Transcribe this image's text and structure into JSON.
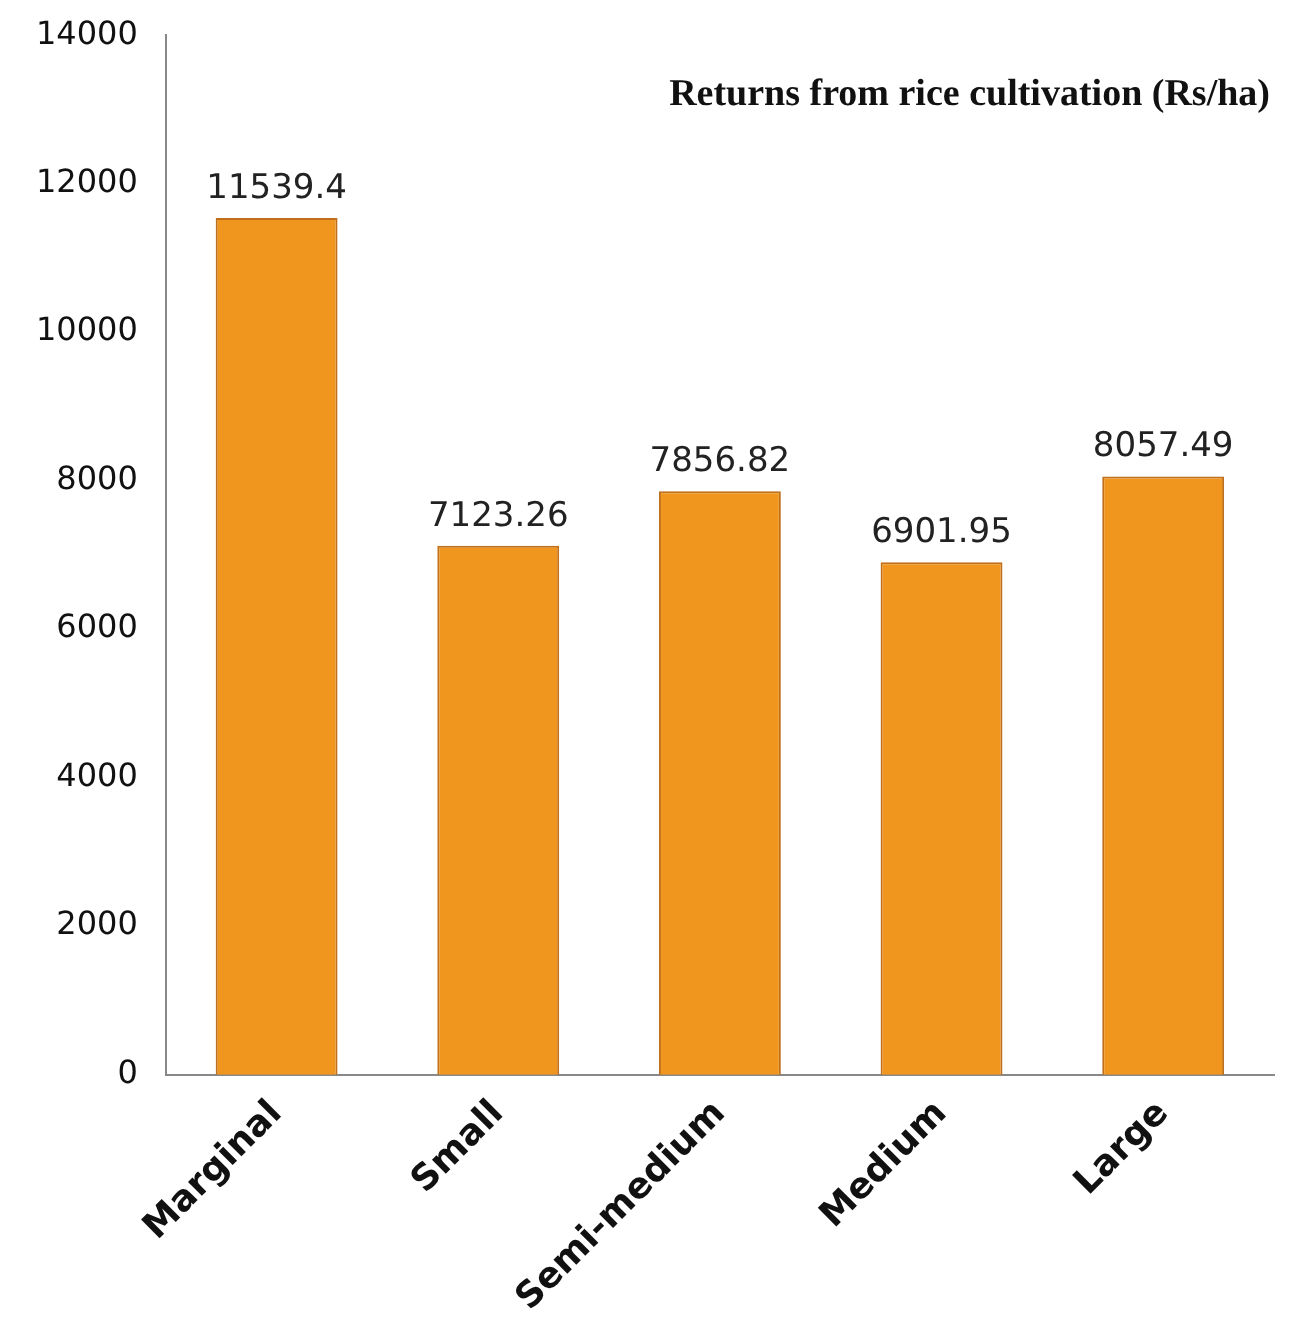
{
  "chart_data": {
    "type": "bar",
    "title": "Returns from rice cultivation (Rs/ha)",
    "categories": [
      "Marginal",
      "Small",
      "Semi-medium",
      "Medium",
      "Large"
    ],
    "values": [
      11539.4,
      7123.26,
      7856.82,
      6901.95,
      8057.49
    ],
    "color": "#f0961e",
    "ylim": [
      0,
      14000
    ],
    "yticks": [
      0,
      2000,
      4000,
      6000,
      8000,
      10000,
      12000,
      14000
    ],
    "grid": false,
    "legend": false,
    "data_labels": true
  }
}
